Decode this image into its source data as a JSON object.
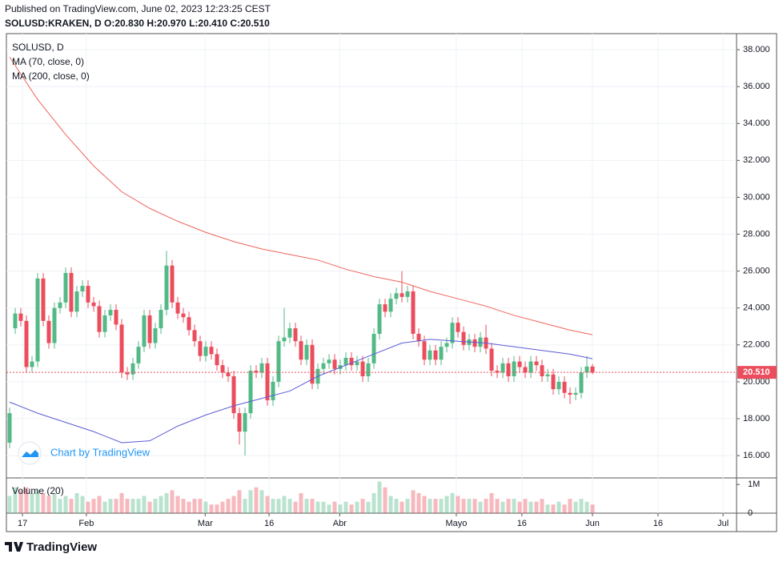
{
  "header": {
    "published": "Published on TradingView.com, June 02, 2023 12:23:25 CEST",
    "ohlc": "SOLUSD:KRAKEN, D O:20.830 H:20.970 L:20.410 C:20.510"
  },
  "chart_data": {
    "type": "candlestick",
    "title": "SOLUSD, D",
    "up_color": "#53b987",
    "down_color": "#eb4d5c",
    "open": [
      16.7,
      22.9,
      23.7,
      23.3,
      20.8,
      21.1,
      25.6,
      23.3,
      22.1,
      24.0,
      24.3,
      25.9,
      23.8,
      24.9,
      25.2,
      24.3,
      24.1,
      22.7,
      23.6,
      23.9,
      23.1,
      20.5,
      20.4,
      21.0,
      21.9,
      23.6,
      22.1,
      22.9,
      23.9,
      26.3,
      24.3,
      23.7,
      23.5,
      22.8,
      22.2,
      21.4,
      21.9,
      21.5,
      20.9,
      20.5,
      20.3,
      18.3,
      17.3,
      18.3,
      20.6,
      20.5,
      21.0,
      19.0,
      20.0,
      22.2,
      22.4,
      22.9,
      22.2,
      21.2,
      22.0,
      19.9,
      20.7,
      21.0,
      21.2,
      20.7,
      20.9,
      21.3,
      20.9,
      21.1,
      20.3,
      21.0,
      22.6,
      24.2,
      23.8,
      24.5,
      24.8,
      24.6,
      24.9,
      22.6,
      22.2,
      21.2,
      21.7,
      21.2,
      21.9,
      22.1,
      23.2,
      22.7,
      22.0,
      22.3,
      21.9,
      22.4,
      21.8,
      20.6,
      20.5,
      21.0,
      20.3,
      21.1,
      20.8,
      20.5,
      21.1,
      20.9,
      20.3,
      20.4,
      19.6,
      20.0,
      19.4,
      19.3,
      19.4,
      20.5,
      20.83
    ],
    "high": [
      18.6,
      24.0,
      24.0,
      23.6,
      21.4,
      25.9,
      25.9,
      23.6,
      24.3,
      24.6,
      26.2,
      26.2,
      25.2,
      25.5,
      25.5,
      24.6,
      24.4,
      23.9,
      24.2,
      24.2,
      23.4,
      20.8,
      21.3,
      22.2,
      23.9,
      23.9,
      23.2,
      24.2,
      27.1,
      26.6,
      24.6,
      24.0,
      23.8,
      23.1,
      22.5,
      22.2,
      22.2,
      21.8,
      21.2,
      20.8,
      20.6,
      18.6,
      18.6,
      20.9,
      20.9,
      21.3,
      21.3,
      20.3,
      22.5,
      24.0,
      23.2,
      23.2,
      22.5,
      22.3,
      22.3,
      21.0,
      21.3,
      21.5,
      21.5,
      21.2,
      21.6,
      21.6,
      21.4,
      21.4,
      21.3,
      22.9,
      24.5,
      24.5,
      24.8,
      25.1,
      26.0,
      25.2,
      25.2,
      22.9,
      22.5,
      22.0,
      22.0,
      22.2,
      22.4,
      23.5,
      23.5,
      23.0,
      22.6,
      22.6,
      22.7,
      23.1,
      22.1,
      20.9,
      21.3,
      21.3,
      21.4,
      21.4,
      21.1,
      21.4,
      21.4,
      21.2,
      20.7,
      20.7,
      20.3,
      20.3,
      19.7,
      19.7,
      20.8,
      21.4,
      20.97
    ],
    "low": [
      16.4,
      22.6,
      23.0,
      20.5,
      20.5,
      20.8,
      23.0,
      21.8,
      21.8,
      23.7,
      24.0,
      23.5,
      23.5,
      24.6,
      24.0,
      23.8,
      22.4,
      22.4,
      23.3,
      22.8,
      20.2,
      20.1,
      20.1,
      20.7,
      21.6,
      21.8,
      21.8,
      22.6,
      23.6,
      24.0,
      23.4,
      23.2,
      22.5,
      21.9,
      21.1,
      21.1,
      21.2,
      20.6,
      20.2,
      20.0,
      18.0,
      16.6,
      16.0,
      18.0,
      20.2,
      20.2,
      18.7,
      18.7,
      19.7,
      21.9,
      22.1,
      21.9,
      20.9,
      20.9,
      19.6,
      19.6,
      20.4,
      20.7,
      20.4,
      20.4,
      20.6,
      20.6,
      20.6,
      20.0,
      20.0,
      20.7,
      22.3,
      23.5,
      23.5,
      24.2,
      24.3,
      24.3,
      22.3,
      21.9,
      20.9,
      20.9,
      20.9,
      20.9,
      21.6,
      21.8,
      22.4,
      21.7,
      21.7,
      21.6,
      21.6,
      21.5,
      20.3,
      20.2,
      20.2,
      20.0,
      20.0,
      20.5,
      20.2,
      20.2,
      20.6,
      20.0,
      20.0,
      19.3,
      19.3,
      19.1,
      18.8,
      19.0,
      19.1,
      20.2,
      20.41
    ],
    "close": [
      18.3,
      23.7,
      23.3,
      20.8,
      21.1,
      25.6,
      23.3,
      22.1,
      24.0,
      24.3,
      25.9,
      23.8,
      24.9,
      25.2,
      24.3,
      24.1,
      22.7,
      23.6,
      23.9,
      23.1,
      20.5,
      20.4,
      21.0,
      21.9,
      23.6,
      22.1,
      22.9,
      23.9,
      26.3,
      24.3,
      23.7,
      23.5,
      22.8,
      22.2,
      21.4,
      21.9,
      21.5,
      20.9,
      20.5,
      20.3,
      18.3,
      17.3,
      18.3,
      20.6,
      20.5,
      21.0,
      19.0,
      20.0,
      22.2,
      22.4,
      22.9,
      22.2,
      21.2,
      22.0,
      19.9,
      20.7,
      21.0,
      21.2,
      20.7,
      20.9,
      21.3,
      20.9,
      21.1,
      20.3,
      21.0,
      22.6,
      24.2,
      23.8,
      24.5,
      24.8,
      24.6,
      24.9,
      22.6,
      22.2,
      21.2,
      21.7,
      21.2,
      21.9,
      22.1,
      23.2,
      22.7,
      22.0,
      22.3,
      21.9,
      22.4,
      21.8,
      20.6,
      20.5,
      21.0,
      20.3,
      21.1,
      20.8,
      20.5,
      21.1,
      20.9,
      20.3,
      20.4,
      19.6,
      20.0,
      19.4,
      19.3,
      19.4,
      20.5,
      20.83,
      20.51
    ],
    "series": [
      {
        "name": "MA (70, close, 0)",
        "color": "#5b5bd6",
        "x": [
          0,
          5,
          10,
          15,
          20,
          25,
          30,
          35,
          40,
          45,
          50,
          55,
          60,
          65,
          70,
          75,
          80,
          85,
          90,
          95,
          100,
          104
        ],
        "values": [
          18.9,
          18.3,
          17.8,
          17.3,
          16.7,
          16.8,
          17.6,
          18.2,
          18.7,
          19.1,
          19.5,
          20.3,
          20.9,
          21.5,
          22.1,
          22.3,
          22.2,
          22.1,
          21.9,
          21.7,
          21.5,
          21.25
        ]
      },
      {
        "name": "MA (200, close, 0)",
        "color": "#f0645a",
        "x": [
          0,
          5,
          10,
          15,
          20,
          25,
          30,
          35,
          40,
          45,
          50,
          55,
          60,
          65,
          70,
          75,
          80,
          85,
          90,
          95,
          100,
          104
        ],
        "values": [
          37.6,
          35.3,
          33.4,
          31.7,
          30.3,
          29.4,
          28.7,
          28.1,
          27.6,
          27.2,
          26.9,
          26.6,
          26.1,
          25.7,
          25.4,
          24.9,
          24.5,
          24.1,
          23.6,
          23.2,
          22.8,
          22.55
        ]
      }
    ],
    "last_price": {
      "value": 20.51,
      "label": "20.510"
    },
    "ylim": [
      14.79,
      38.87
    ],
    "yticks": [
      {
        "value": 16,
        "label": "16.000"
      },
      {
        "value": 18,
        "label": "18.000"
      },
      {
        "value": 20,
        "label": "20.000"
      },
      {
        "value": 22,
        "label": "22.000"
      },
      {
        "value": 24,
        "label": "24.000"
      },
      {
        "value": 26,
        "label": "26.000"
      },
      {
        "value": 28,
        "label": "28.000"
      },
      {
        "value": 30,
        "label": "30.000"
      },
      {
        "value": 32,
        "label": "32.000"
      },
      {
        "value": 34,
        "label": "34.000"
      },
      {
        "value": 36,
        "label": "36.000"
      },
      {
        "value": 38,
        "label": "38.000"
      }
    ],
    "xlim": [
      -0.57,
      129.71
    ],
    "xticks": [
      {
        "value": 2.3,
        "label": "17"
      },
      {
        "value": 13.7,
        "label": "Feb"
      },
      {
        "value": 34.9,
        "label": "Mar"
      },
      {
        "value": 46.3,
        "label": "16"
      },
      {
        "value": 58.9,
        "label": "Abr"
      },
      {
        "value": 79.7,
        "label": "Mayo"
      },
      {
        "value": 91.4,
        "label": "16"
      },
      {
        "value": 104,
        "label": "Jun"
      },
      {
        "value": 115.7,
        "label": "16"
      },
      {
        "value": 127.3,
        "label": "Jul"
      }
    ],
    "grid": true,
    "volume": {
      "name": "Volume (20)",
      "ylim": [
        0,
        1.2
      ],
      "yticks": [
        0,
        {
          "value": 1,
          "label": "1M"
        }
      ],
      "values": [
        0.6,
        0.9,
        0.8,
        0.9,
        0.7,
        0.8,
        0.7,
        0.6,
        0.7,
        0.5,
        0.6,
        0.5,
        0.7,
        0.6,
        0.4,
        0.5,
        0.6,
        0.4,
        0.5,
        0.5,
        0.7,
        0.5,
        0.5,
        0.5,
        0.6,
        0.4,
        0.5,
        0.6,
        0.7,
        0.8,
        0.6,
        0.5,
        0.4,
        0.5,
        0.5,
        0.4,
        0.3,
        0.3,
        0.4,
        0.5,
        0.6,
        0.8,
        0.5,
        0.8,
        0.9,
        0.8,
        0.6,
        0.5,
        0.5,
        0.6,
        0.5,
        0.4,
        0.7,
        0.5,
        0.5,
        0.4,
        0.4,
        0.3,
        0.4,
        0.3,
        0.4,
        0.3,
        0.4,
        0.5,
        0.4,
        0.7,
        1.1,
        0.9,
        0.6,
        0.5,
        0.4,
        0.5,
        0.8,
        0.7,
        0.6,
        0.5,
        0.5,
        0.5,
        0.6,
        0.7,
        0.6,
        0.5,
        0.5,
        0.5,
        0.4,
        0.5,
        0.7,
        0.5,
        0.4,
        0.5,
        0.5,
        0.4,
        0.5,
        0.4,
        0.4,
        0.5,
        0.3,
        0.3,
        0.4,
        0.3,
        0.5,
        0.4,
        0.5,
        0.4,
        0.3
      ]
    }
  },
  "watermark": "Chart by TradingView",
  "footer": {
    "logo": "TradingView"
  }
}
